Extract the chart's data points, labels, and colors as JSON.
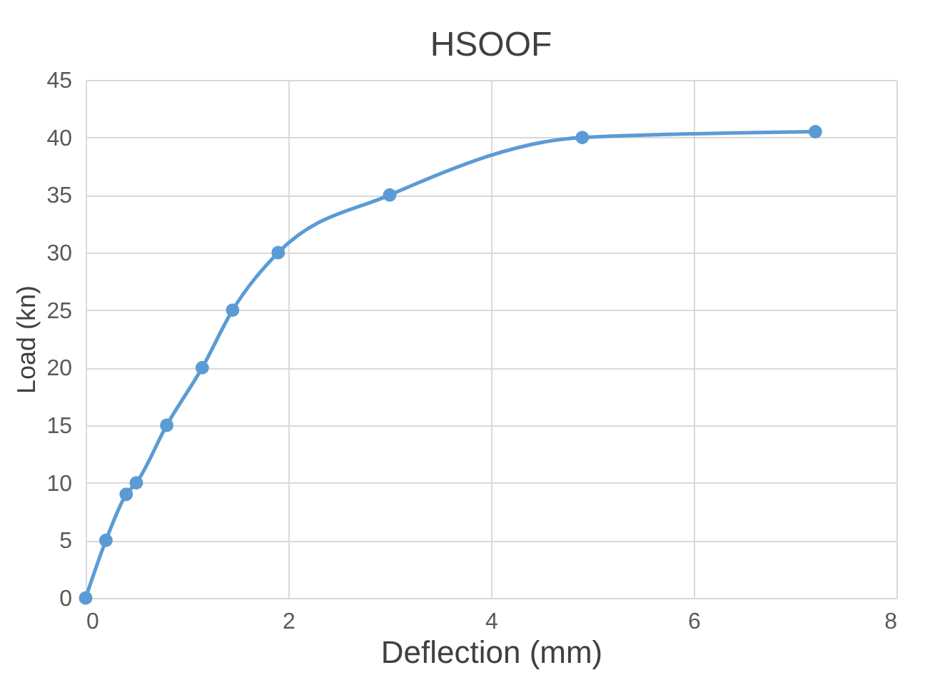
{
  "chart_data": {
    "type": "line",
    "title": "HSOOF",
    "xlabel": "Deflection (mm)",
    "ylabel": "Load (kn)",
    "x": [
      0,
      0.2,
      0.4,
      0.5,
      0.8,
      1.15,
      1.45,
      1.9,
      3.0,
      4.9,
      7.2
    ],
    "series": [
      {
        "color": "#5b9bd5",
        "values": [
          0,
          5,
          9,
          10,
          15,
          20,
          25,
          30,
          35,
          40,
          40.5
        ]
      }
    ],
    "xlim": [
      0,
      8
    ],
    "xticks": [
      0,
      2,
      4,
      6,
      8
    ],
    "ylim": [
      0,
      45
    ],
    "yticks": [
      0,
      5,
      10,
      15,
      20,
      25,
      30,
      35,
      40,
      45
    ],
    "grid": true,
    "marker": "circle"
  }
}
